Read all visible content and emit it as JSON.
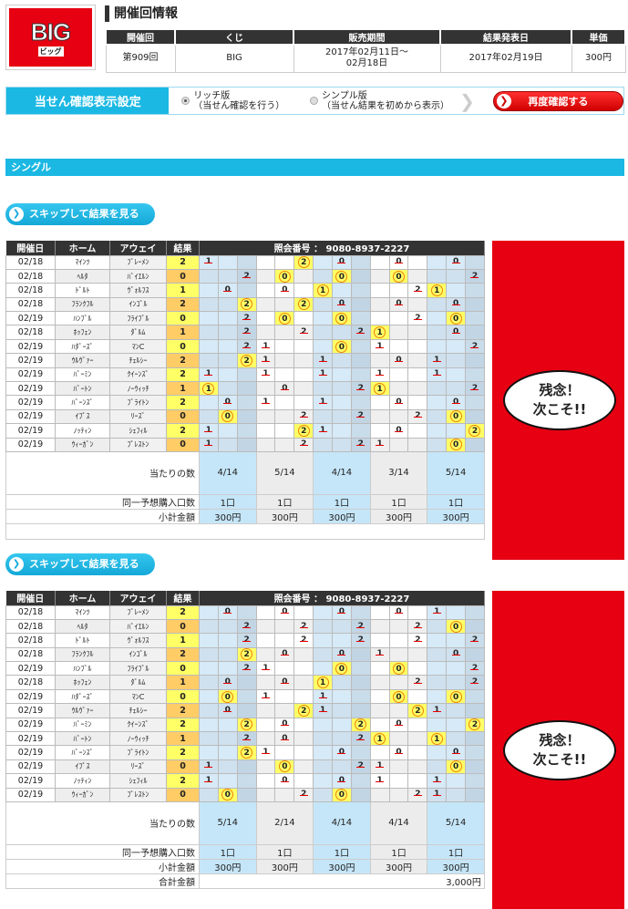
{
  "logo": {
    "text": "BIG",
    "sub": "ビッグ"
  },
  "title": "開催回情報",
  "info": {
    "headers": [
      "開催回",
      "くじ",
      "販売期間",
      "結果発表日",
      "単価"
    ],
    "round": "第909回",
    "lottery": "BIG",
    "period_1": "2017年02月11日～",
    "period_2": "02月18日",
    "result_date": "2017年02月19日",
    "price": "300円"
  },
  "settings": {
    "label": "当せん確認表示設定",
    "rich": {
      "title": "リッチ版",
      "desc": "（当せん確認を行う）",
      "selected": true
    },
    "simple": {
      "title": "シンプル版",
      "desc": "（当せん結果を初めから表示）",
      "selected": false
    },
    "recheck": "再度確認する"
  },
  "section": "シングル",
  "skip_label": "スキップして結果を見る",
  "columns": {
    "date": "開催日",
    "home": "ホーム",
    "away": "アウェイ",
    "result": "結果",
    "ref_label": "照会番号 ： 9080-8937-2227"
  },
  "matches": [
    {
      "date": "02/18",
      "home": "ﾏｲﾝﾂ",
      "away": "ﾌﾞﾚｰﾒﾝ",
      "result": "2"
    },
    {
      "date": "02/18",
      "home": "ﾍﾙﾀ",
      "away": "ﾊﾞｲｴﾙﾝ",
      "result": "0"
    },
    {
      "date": "02/18",
      "home": "ﾄﾞﾙﾄ",
      "away": "ｳﾞｫﾙﾌｽ",
      "result": "1"
    },
    {
      "date": "02/18",
      "home": "ﾌﾗﾝｸﾌﾙ",
      "away": "ｲﾝｺﾞﾙ",
      "result": "2"
    },
    {
      "date": "02/19",
      "home": "ﾊﾝﾌﾞﾙ",
      "away": "ﾌﾗｲﾌﾞﾙ",
      "result": "0"
    },
    {
      "date": "02/18",
      "home": "ﾎｯﾌｪﾝ",
      "away": "ﾀﾞﾙﾑ",
      "result": "1"
    },
    {
      "date": "02/19",
      "home": "ﾊﾀﾞｰｽﾞ",
      "away": "ﾏﾝC",
      "result": "0"
    },
    {
      "date": "02/19",
      "home": "ｳﾙｳﾞｧｰ",
      "away": "ﾁｪﾙｼｰ",
      "result": "2"
    },
    {
      "date": "02/19",
      "home": "ﾊﾞｰﾐﾝ",
      "away": "ｸｲｰﾝｽﾞ",
      "result": "2"
    },
    {
      "date": "02/19",
      "home": "ﾊﾞｰﾄﾝ",
      "away": "ﾉｰｳｨｯﾁ",
      "result": "1"
    },
    {
      "date": "02/19",
      "home": "ﾊﾞｰﾝｽﾞ",
      "away": "ﾌﾞﾗｲﾄﾝ",
      "result": "2"
    },
    {
      "date": "02/19",
      "home": "ｲﾌﾟｽ",
      "away": "ﾘｰｽﾞ",
      "result": "0"
    },
    {
      "date": "02/19",
      "home": "ﾉｯﾃｨﾝ",
      "away": "ｼｪﾌｨﾙ",
      "result": "2"
    },
    {
      "date": "02/19",
      "home": "ｳｨｰｶﾞﾝ",
      "away": "ﾌﾟﾚｽﾄﾝ",
      "result": "0"
    }
  ],
  "summary_labels": {
    "hits": "当たりの数",
    "units": "同一予想購入口数",
    "subtotal": "小計金額",
    "total": "合計金額"
  },
  "message": {
    "line1": "残念！",
    "line2": "次こそ!!"
  },
  "colors": {
    "accent": "#1bb8e3",
    "red": "#e60012",
    "hit": "#ffff66"
  },
  "tables": [
    {
      "picks": [
        [
          "1",
          "2",
          "0",
          "0",
          "0"
        ],
        [
          "2",
          "0",
          "0",
          "0",
          "2"
        ],
        [
          "0",
          "0",
          "1",
          "2",
          "1"
        ],
        [
          "2",
          "2",
          "0",
          "0",
          "0"
        ],
        [
          "2",
          "0",
          "0",
          "2",
          "0"
        ],
        [
          "2",
          "2",
          "2",
          "1",
          "0"
        ],
        [
          "2",
          "1",
          "0",
          "1",
          "2"
        ],
        [
          "2",
          "1",
          "1",
          "0",
          "1"
        ],
        [
          "1",
          "1",
          "1",
          "1",
          "1"
        ],
        [
          "1",
          "0",
          "2",
          "1",
          "2"
        ],
        [
          "0",
          "1",
          "1",
          "0",
          "0"
        ],
        [
          "0",
          "2",
          "2",
          "2",
          "0"
        ],
        [
          "1",
          "2",
          "1",
          "0",
          "2"
        ],
        [
          "1",
          "2",
          "2",
          "1",
          "0"
        ]
      ],
      "hits": [
        "4/14",
        "5/14",
        "4/14",
        "3/14",
        "5/14"
      ],
      "units": [
        "1口",
        "1口",
        "1口",
        "1口",
        "1口"
      ],
      "subtotal": [
        "300円",
        "300円",
        "300円",
        "300円",
        "300円"
      ]
    },
    {
      "picks": [
        [
          "0",
          "0",
          "0",
          "0",
          "1"
        ],
        [
          "2",
          "2",
          "2",
          "2",
          "0"
        ],
        [
          "2",
          "2",
          "2",
          "2",
          "2"
        ],
        [
          "2",
          "0",
          "0",
          "1",
          "0"
        ],
        [
          "2",
          "1",
          "0",
          "0",
          "2"
        ],
        [
          "0",
          "0",
          "1",
          "2",
          "2"
        ],
        [
          "0",
          "1",
          "1",
          "0",
          "0"
        ],
        [
          "0",
          "2",
          "1",
          "2",
          "1"
        ],
        [
          "2",
          "0",
          "2",
          "0",
          "2"
        ],
        [
          "2",
          "0",
          "2",
          "1",
          "1"
        ],
        [
          "2",
          "1",
          "0",
          "0",
          "0"
        ],
        [
          "1",
          "0",
          "2",
          "1",
          "0"
        ],
        [
          "1",
          "0",
          "0",
          "1",
          "1"
        ],
        [
          "0",
          "2",
          "0",
          "2",
          "1"
        ]
      ],
      "hits": [
        "5/14",
        "2/14",
        "4/14",
        "4/14",
        "5/14"
      ],
      "units": [
        "1口",
        "1口",
        "1口",
        "1口",
        "1口"
      ],
      "subtotal": [
        "300円",
        "300円",
        "300円",
        "300円",
        "300円"
      ],
      "total": "3,000円"
    }
  ]
}
